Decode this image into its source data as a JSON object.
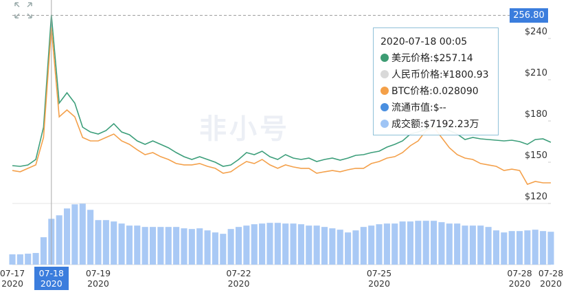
{
  "chart_data": {
    "type": "line",
    "categories": [
      "07-17\n2020",
      null,
      null,
      null,
      null,
      "07-18\n2020",
      null,
      null,
      null,
      null,
      null,
      "07-19\n2020",
      null,
      null,
      null,
      null,
      null,
      null,
      null,
      null,
      null,
      null,
      null,
      null,
      null,
      null,
      null,
      null,
      null,
      "07-22\n2020",
      null,
      null,
      null,
      null,
      null,
      null,
      null,
      null,
      null,
      null,
      null,
      null,
      null,
      null,
      null,
      null,
      null,
      "07-25\n2020",
      null,
      null,
      null,
      null,
      null,
      null,
      null,
      null,
      null,
      null,
      null,
      null,
      null,
      null,
      null,
      null,
      null,
      "07-28\n2020",
      null,
      null,
      null,
      "07-28\n2020"
    ],
    "series": [
      {
        "color": "#3c9e7a",
        "values": [
          147.5,
          147,
          148,
          152,
          175.5,
          257.14,
          193,
          200.5,
          193,
          175.5,
          172,
          170.5,
          173,
          178,
          172,
          170,
          165.5,
          163,
          165.5,
          163,
          160.5,
          157,
          154,
          152,
          154,
          152,
          150,
          147,
          148,
          152,
          157,
          155.5,
          158,
          154,
          152,
          155.5,
          153,
          152,
          153,
          150.5,
          152,
          153,
          151.5,
          153,
          155,
          155.5,
          157,
          158,
          161,
          163,
          165.5,
          170.5,
          172,
          174,
          175.5,
          175.5,
          173,
          170.5,
          166.5,
          168,
          167,
          166.5,
          166,
          165.5,
          166,
          165,
          163,
          166.5,
          167,
          164.5
        ]
      },
      {
        "color": "#f4a04a",
        "axis": "y2",
        "values": [
          0.01684,
          0.01674,
          0.01701,
          0.01728,
          0.01944,
          0.02809,
          0.02106,
          0.0216,
          0.02106,
          0.01944,
          0.01917,
          0.01917,
          0.01944,
          0.01971,
          0.01917,
          0.0189,
          0.01847,
          0.01809,
          0.01825,
          0.01793,
          0.01771,
          0.01739,
          0.01728,
          0.01728,
          0.01739,
          0.01717,
          0.01701,
          0.01663,
          0.01674,
          0.01717,
          0.01755,
          0.01739,
          0.01771,
          0.01728,
          0.01701,
          0.01728,
          0.01712,
          0.01701,
          0.01701,
          0.01663,
          0.01674,
          0.01684,
          0.01674,
          0.0169,
          0.01701,
          0.01701,
          0.01739,
          0.01755,
          0.01782,
          0.01793,
          0.01825,
          0.01879,
          0.01917,
          0.01998,
          0.02025,
          0.01944,
          0.01863,
          0.01809,
          0.01782,
          0.01771,
          0.01739,
          0.01728,
          0.01717,
          0.01684,
          0.01695,
          0.01684,
          0.01576,
          0.01598,
          0.01587,
          0.01587
        ]
      }
    ],
    "ylim": [
      120,
      268
    ],
    "yticks": [
      {
        "value": 120,
        "label": "$120"
      },
      {
        "value": 150,
        "label": "$150"
      },
      {
        "value": 180,
        "label": "$180"
      },
      {
        "value": 210,
        "label": "$210"
      },
      {
        "value": 240,
        "label": "$240"
      }
    ],
    "y2lim": [
      0.01425,
      0.03025
    ],
    "last_price": {
      "value": 256.8,
      "label": "256.80"
    },
    "volume": {
      "color": "#a9c9f5",
      "ylim": [
        0,
        9600
      ],
      "values": [
        1613,
        1613,
        1720,
        1828,
        4300,
        7192.23,
        7740,
        8815,
        9460,
        9568,
        8600,
        6988,
        6988,
        6773,
        6450,
        6128,
        6128,
        5913,
        5913,
        5913,
        5913,
        5913,
        5698,
        5590,
        5698,
        5375,
        5053,
        4838,
        5590,
        5913,
        6128,
        6343,
        6450,
        6558,
        6558,
        6450,
        6450,
        6343,
        6128,
        6128,
        5913,
        5698,
        5483,
        5053,
        5375,
        5913,
        6128,
        6343,
        6450,
        6450,
        6773,
        6773,
        6880,
        6880,
        6880,
        6665,
        6450,
        6450,
        6128,
        6128,
        6128,
        5913,
        5375,
        5053,
        5268,
        5268,
        5375,
        5483,
        5268,
        5160
      ]
    },
    "watermark": "非小号",
    "tooltip": {
      "time": "2020-07-18 00:05",
      "items": [
        {
          "label": "美元价格:$257.14",
          "color": "#3d9c73"
        },
        {
          "label": "人民币价格:¥1800.93",
          "color": "#d9d9d9"
        },
        {
          "label": "BTC价格:0.028090",
          "color": "#f4a048"
        },
        {
          "label": "流通市值:$--",
          "color": "#4a8fe0"
        },
        {
          "label": "成交额:$7192.23万",
          "color": "#9ec4f5"
        }
      ]
    }
  }
}
